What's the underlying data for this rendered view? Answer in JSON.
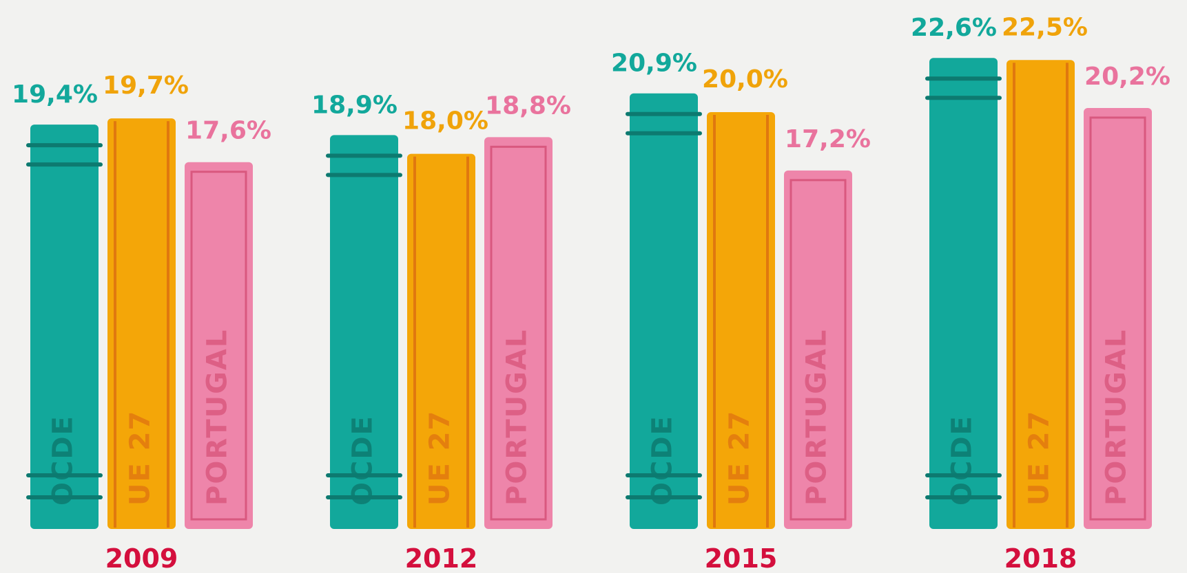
{
  "chart_data": {
    "type": "bar",
    "categories": [
      "2009",
      "2012",
      "2015",
      "2018"
    ],
    "series": [
      {
        "name": "OCDE",
        "color": "#12a89b",
        "values": [
          19.4,
          18.9,
          20.9,
          22.6
        ],
        "value_labels": [
          "19,4%",
          "18,9%",
          "20,9%",
          "22,6%"
        ]
      },
      {
        "name": "UE 27",
        "color": "#f4a608",
        "values": [
          19.7,
          18.0,
          20.0,
          22.5
        ],
        "value_labels": [
          "19,7%",
          "18,0%",
          "20,0%",
          "22,5%"
        ]
      },
      {
        "name": "PORTUGAL",
        "color": "#ee85aa",
        "values": [
          17.6,
          18.8,
          17.2,
          20.2
        ],
        "value_labels": [
          "17,6%",
          "18,8%",
          "17,2%",
          "20,2%"
        ]
      }
    ]
  }
}
